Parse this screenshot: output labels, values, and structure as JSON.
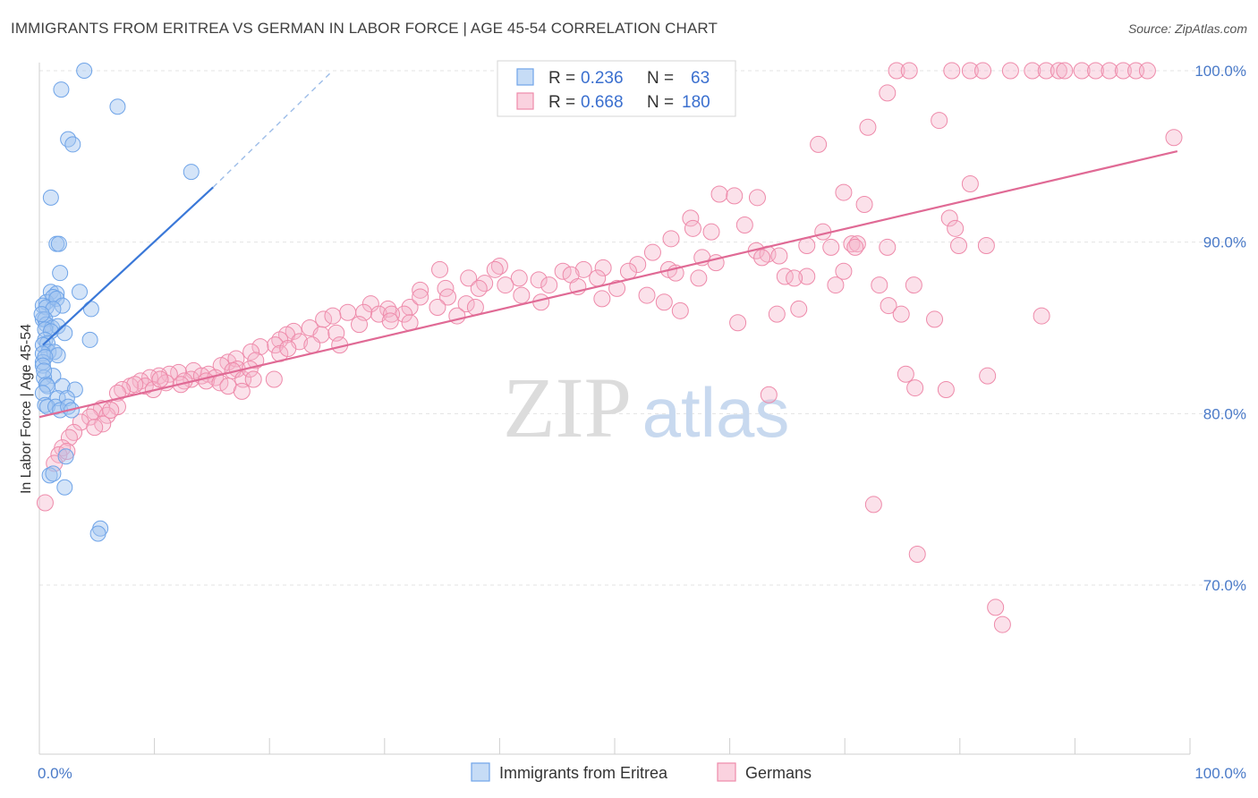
{
  "title": "IMMIGRANTS FROM ERITREA VS GERMAN IN LABOR FORCE | AGE 45-54 CORRELATION CHART",
  "source": "Source: ZipAtlas.com",
  "watermark": {
    "zip": "ZIP",
    "atlas": "atlas"
  },
  "colors": {
    "blue": "#6fa4e8",
    "blue_fill": "rgba(160,196,240,0.45)",
    "blue_line": "#3a78d8",
    "pink": "#ee8aaa",
    "pink_fill": "rgba(246,180,202,0.40)",
    "pink_line": "#e06a95",
    "tick_label": "#4a7ac8",
    "grid": "#e3e3e3"
  },
  "legend": {
    "rows": [
      {
        "r_label": "R =",
        "r_value": "0.236",
        "n_label": "N =",
        "n_value": "63"
      },
      {
        "r_label": "R =",
        "r_value": "0.668",
        "n_label": "N =",
        "n_value": "180"
      }
    ]
  },
  "bottom_legend": [
    "Immigrants from Eritrea",
    "Germans"
  ],
  "chart_data": {
    "type": "scatter",
    "ylabel": "In Labor Force | Age 45-54",
    "xlim": [
      0,
      100
    ],
    "ylim": [
      60.5,
      102.5
    ],
    "x_tick_labels": [
      "0.0%",
      "100.0%"
    ],
    "y_ticks": [
      70,
      80,
      90,
      100
    ],
    "y_tick_labels": [
      "70.0%",
      "80.0%",
      "90.0%",
      "100.0%"
    ],
    "grid": true,
    "legend_position": "top-center",
    "series": [
      {
        "name": "Immigrants from Eritrea",
        "R": 0.236,
        "N": 63,
        "trend": {
          "x0": 0.3,
          "y0": 84.0,
          "x1": 15.1,
          "y1": 93.2,
          "dash_to_x": 25.5,
          "dash_to_y": 100.0
        },
        "points": [
          [
            3.9,
            100.0
          ],
          [
            1.9,
            98.9
          ],
          [
            6.8,
            97.9
          ],
          [
            2.5,
            96.0
          ],
          [
            2.9,
            95.7
          ],
          [
            13.2,
            94.1
          ],
          [
            1.0,
            92.6
          ],
          [
            1.5,
            89.9
          ],
          [
            1.7,
            89.9
          ],
          [
            1.8,
            88.2
          ],
          [
            3.5,
            87.1
          ],
          [
            1.0,
            87.1
          ],
          [
            1.5,
            87.0
          ],
          [
            0.6,
            86.5
          ],
          [
            1.2,
            86.8
          ],
          [
            0.3,
            86.3
          ],
          [
            0.6,
            86.2
          ],
          [
            1.5,
            86.7
          ],
          [
            2.0,
            86.3
          ],
          [
            1.2,
            86.1
          ],
          [
            4.5,
            86.1
          ],
          [
            0.3,
            85.5
          ],
          [
            0.5,
            85.5
          ],
          [
            0.6,
            85.2
          ],
          [
            1.1,
            85.0
          ],
          [
            1.6,
            85.1
          ],
          [
            0.5,
            84.9
          ],
          [
            1.0,
            84.8
          ],
          [
            2.2,
            84.7
          ],
          [
            0.5,
            84.3
          ],
          [
            0.7,
            84.1
          ],
          [
            0.3,
            84.0
          ],
          [
            0.8,
            83.6
          ],
          [
            1.3,
            83.6
          ],
          [
            0.3,
            83.5
          ],
          [
            1.6,
            83.4
          ],
          [
            4.4,
            84.3
          ],
          [
            0.3,
            83.0
          ],
          [
            0.5,
            83.3
          ],
          [
            0.3,
            82.8
          ],
          [
            1.2,
            82.2
          ],
          [
            0.4,
            82.1
          ],
          [
            0.6,
            81.7
          ],
          [
            2.0,
            81.6
          ],
          [
            3.1,
            81.4
          ],
          [
            0.7,
            81.6
          ],
          [
            0.3,
            81.2
          ],
          [
            1.6,
            80.9
          ],
          [
            2.4,
            80.9
          ],
          [
            0.5,
            80.5
          ],
          [
            0.7,
            80.4
          ],
          [
            1.4,
            80.4
          ],
          [
            1.8,
            80.2
          ],
          [
            2.5,
            80.4
          ],
          [
            2.8,
            80.2
          ],
          [
            2.3,
            77.5
          ],
          [
            0.9,
            76.4
          ],
          [
            1.2,
            76.5
          ],
          [
            2.2,
            75.7
          ],
          [
            5.3,
            73.3
          ],
          [
            5.1,
            73.0
          ],
          [
            0.2,
            85.8
          ],
          [
            0.4,
            82.5
          ]
        ]
      },
      {
        "name": "Germans",
        "R": 0.668,
        "N": 180,
        "trend": {
          "x0": 0.0,
          "y0": 79.8,
          "x1": 98.9,
          "y1": 95.3
        },
        "points": [
          [
            74.5,
            100.0
          ],
          [
            75.6,
            100.0
          ],
          [
            79.3,
            100.0
          ],
          [
            80.9,
            100.0
          ],
          [
            82.0,
            100.0
          ],
          [
            84.4,
            100.0
          ],
          [
            86.3,
            100.0
          ],
          [
            87.5,
            100.0
          ],
          [
            88.6,
            100.0
          ],
          [
            89.1,
            100.0
          ],
          [
            90.6,
            100.0
          ],
          [
            91.8,
            100.0
          ],
          [
            93.0,
            100.0
          ],
          [
            94.2,
            100.0
          ],
          [
            95.3,
            100.0
          ],
          [
            96.3,
            100.0
          ],
          [
            73.7,
            98.7
          ],
          [
            78.2,
            97.1
          ],
          [
            72.0,
            96.7
          ],
          [
            98.6,
            96.1
          ],
          [
            67.7,
            95.7
          ],
          [
            80.9,
            93.4
          ],
          [
            59.1,
            92.8
          ],
          [
            62.4,
            92.6
          ],
          [
            60.4,
            92.7
          ],
          [
            69.9,
            92.9
          ],
          [
            71.7,
            92.2
          ],
          [
            56.6,
            91.4
          ],
          [
            61.3,
            91.0
          ],
          [
            58.4,
            90.6
          ],
          [
            79.1,
            91.4
          ],
          [
            79.6,
            90.8
          ],
          [
            68.1,
            90.6
          ],
          [
            56.8,
            90.8
          ],
          [
            54.9,
            90.2
          ],
          [
            70.6,
            89.9
          ],
          [
            66.7,
            89.8
          ],
          [
            71.1,
            89.9
          ],
          [
            70.9,
            89.7
          ],
          [
            79.9,
            89.8
          ],
          [
            82.3,
            89.8
          ],
          [
            73.7,
            89.7
          ],
          [
            68.8,
            89.7
          ],
          [
            62.3,
            89.5
          ],
          [
            63.3,
            89.3
          ],
          [
            64.3,
            89.2
          ],
          [
            62.8,
            89.1
          ],
          [
            57.6,
            89.1
          ],
          [
            58.8,
            88.8
          ],
          [
            53.3,
            89.4
          ],
          [
            52.0,
            88.7
          ],
          [
            54.7,
            88.4
          ],
          [
            49.0,
            88.5
          ],
          [
            51.2,
            88.3
          ],
          [
            47.3,
            88.4
          ],
          [
            45.5,
            88.3
          ],
          [
            46.2,
            88.1
          ],
          [
            48.5,
            87.9
          ],
          [
            40.0,
            88.6
          ],
          [
            43.4,
            87.8
          ],
          [
            41.7,
            87.9
          ],
          [
            39.6,
            88.4
          ],
          [
            37.3,
            87.9
          ],
          [
            38.7,
            87.6
          ],
          [
            44.3,
            87.5
          ],
          [
            46.8,
            87.4
          ],
          [
            50.2,
            87.3
          ],
          [
            55.3,
            88.2
          ],
          [
            57.3,
            87.9
          ],
          [
            66.7,
            88.0
          ],
          [
            64.8,
            88.0
          ],
          [
            65.6,
            87.9
          ],
          [
            69.2,
            87.5
          ],
          [
            73.0,
            87.5
          ],
          [
            69.9,
            88.3
          ],
          [
            34.8,
            88.4
          ],
          [
            35.3,
            87.3
          ],
          [
            38.2,
            87.3
          ],
          [
            40.5,
            87.5
          ],
          [
            43.6,
            86.5
          ],
          [
            41.9,
            86.9
          ],
          [
            48.9,
            86.7
          ],
          [
            52.8,
            86.9
          ],
          [
            54.3,
            86.5
          ],
          [
            37.1,
            86.4
          ],
          [
            35.5,
            86.8
          ],
          [
            33.1,
            87.2
          ],
          [
            32.2,
            86.2
          ],
          [
            28.8,
            86.4
          ],
          [
            30.3,
            86.1
          ],
          [
            33.1,
            86.8
          ],
          [
            34.6,
            86.2
          ],
          [
            31.7,
            85.8
          ],
          [
            29.5,
            85.8
          ],
          [
            28.2,
            85.9
          ],
          [
            26.8,
            85.9
          ],
          [
            24.7,
            85.5
          ],
          [
            27.8,
            85.2
          ],
          [
            25.5,
            85.7
          ],
          [
            30.6,
            85.8
          ],
          [
            32.2,
            85.3
          ],
          [
            30.5,
            85.4
          ],
          [
            36.3,
            85.7
          ],
          [
            37.9,
            86.2
          ],
          [
            55.7,
            86.0
          ],
          [
            60.7,
            85.3
          ],
          [
            64.1,
            85.8
          ],
          [
            66.0,
            86.1
          ],
          [
            73.8,
            86.3
          ],
          [
            74.9,
            85.8
          ],
          [
            77.8,
            85.5
          ],
          [
            87.1,
            85.7
          ],
          [
            76.0,
            87.5
          ],
          [
            23.5,
            85.0
          ],
          [
            24.5,
            84.6
          ],
          [
            22.1,
            84.8
          ],
          [
            21.5,
            84.6
          ],
          [
            20.9,
            84.3
          ],
          [
            22.6,
            84.2
          ],
          [
            23.7,
            84.0
          ],
          [
            25.8,
            84.7
          ],
          [
            26.1,
            84.0
          ],
          [
            20.5,
            84.0
          ],
          [
            19.2,
            83.9
          ],
          [
            18.4,
            83.6
          ],
          [
            18.8,
            83.1
          ],
          [
            20.9,
            83.5
          ],
          [
            21.6,
            83.8
          ],
          [
            16.4,
            83.0
          ],
          [
            17.1,
            83.2
          ],
          [
            15.8,
            82.8
          ],
          [
            17.2,
            82.6
          ],
          [
            14.7,
            82.3
          ],
          [
            13.4,
            82.5
          ],
          [
            12.1,
            82.4
          ],
          [
            11.3,
            82.3
          ],
          [
            10.4,
            82.2
          ],
          [
            9.6,
            82.1
          ],
          [
            8.8,
            81.9
          ],
          [
            13.2,
            82.0
          ],
          [
            14.1,
            82.2
          ],
          [
            15.3,
            82.1
          ],
          [
            16.8,
            82.5
          ],
          [
            17.7,
            82.0
          ],
          [
            18.3,
            82.6
          ],
          [
            12.6,
            81.9
          ],
          [
            11.0,
            81.8
          ],
          [
            9.2,
            81.6
          ],
          [
            7.9,
            81.6
          ],
          [
            8.3,
            81.7
          ],
          [
            7.2,
            81.4
          ],
          [
            6.8,
            81.2
          ],
          [
            9.9,
            81.4
          ],
          [
            10.5,
            82.0
          ],
          [
            12.3,
            81.7
          ],
          [
            14.5,
            81.9
          ],
          [
            15.7,
            81.8
          ],
          [
            16.4,
            81.6
          ],
          [
            17.6,
            81.3
          ],
          [
            18.6,
            82.0
          ],
          [
            20.4,
            82.0
          ],
          [
            5.4,
            80.3
          ],
          [
            6.8,
            80.4
          ],
          [
            4.8,
            80.1
          ],
          [
            5.9,
            79.9
          ],
          [
            6.2,
            80.2
          ],
          [
            4.4,
            79.8
          ],
          [
            3.6,
            79.5
          ],
          [
            5.5,
            79.4
          ],
          [
            4.8,
            79.2
          ],
          [
            3.0,
            78.9
          ],
          [
            2.6,
            78.6
          ],
          [
            2.0,
            78.0
          ],
          [
            1.7,
            77.6
          ],
          [
            2.4,
            77.8
          ],
          [
            1.3,
            77.1
          ],
          [
            0.5,
            74.8
          ],
          [
            63.4,
            81.1
          ],
          [
            75.3,
            82.3
          ],
          [
            76.1,
            81.5
          ],
          [
            78.8,
            81.4
          ],
          [
            82.4,
            82.2
          ],
          [
            72.5,
            74.7
          ],
          [
            76.3,
            71.8
          ],
          [
            83.1,
            68.7
          ],
          [
            83.7,
            67.7
          ]
        ]
      }
    ]
  }
}
